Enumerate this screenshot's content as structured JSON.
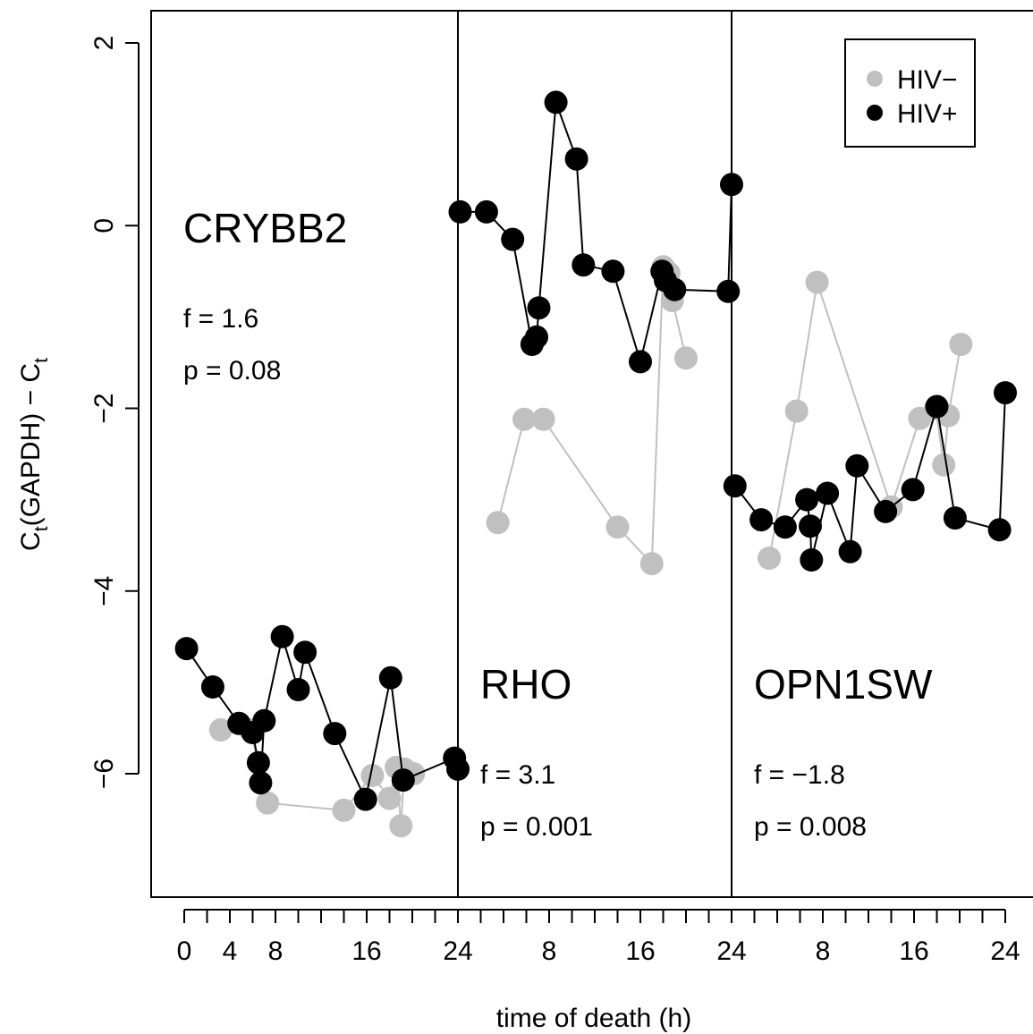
{
  "chart_data": {
    "type": "scatter",
    "xlabel": "time of death (h)",
    "ylabel_main": "C",
    "ylabel_sub1": "t",
    "ylabel_mid": "(GAPDH) − C",
    "ylabel_sub2": "t",
    "ylim": [
      -7.35,
      2.35
    ],
    "y_ticks": [
      2,
      0,
      -2,
      -4,
      -6
    ],
    "y_tick_labels": [
      "2",
      "0",
      "−2",
      "−4",
      "−6"
    ],
    "x_tick_labels": [
      "0",
      "4",
      "8",
      "16",
      "24",
      "8",
      "16",
      "24",
      "8",
      "16",
      "24"
    ],
    "legend": {
      "position": "top-right",
      "entries": [
        {
          "label": "HIV−",
          "color": "#c0c0c0"
        },
        {
          "label": "HIV+",
          "color": "#000000"
        }
      ]
    },
    "colors": {
      "HIV-": "#c0c0c0",
      "HIV+": "#000000"
    },
    "panels": [
      {
        "gene": "CRYBB2",
        "f": "f = 1.6",
        "p": "p = 0.08",
        "series": [
          {
            "name": "HIV+",
            "x": [
              0.2,
              2.5,
              4.8,
              6.0,
              6.5,
              6.7,
              7.0,
              8.6,
              10.0,
              10.6,
              13.2,
              15.9,
              18.1,
              19.2,
              23.7,
              24
            ],
            "y": [
              -4.63,
              -5.05,
              -5.45,
              -5.55,
              -5.88,
              -6.1,
              -5.42,
              -4.5,
              -5.08,
              -4.67,
              -5.56,
              -6.28,
              -4.95,
              -6.07,
              -5.83,
              -5.95
            ]
          },
          {
            "name": "HIV−",
            "x": [
              3.2,
              5.8,
              7.3,
              14.0,
              16.5,
              18.0,
              18.6,
              19.0,
              19.3,
              20.1
            ],
            "y": [
              -5.52,
              -5.52,
              -6.32,
              -6.4,
              -6.02,
              -6.27,
              -5.93,
              -6.57,
              -5.95,
              -6.0
            ]
          }
        ]
      },
      {
        "gene": "RHO",
        "f": "f = 3.1",
        "p": "p = 0.001",
        "series": [
          {
            "name": "HIV+",
            "x": [
              0.2,
              2.5,
              4.8,
              6.5,
              6.9,
              7.1,
              8.6,
              10.4,
              11.0,
              13.6,
              16.0,
              17.9,
              18.2,
              19.0,
              23.7,
              24
            ],
            "y": [
              0.15,
              0.15,
              -0.15,
              -1.3,
              -1.22,
              -0.9,
              1.35,
              0.73,
              -0.43,
              -0.5,
              -1.49,
              -0.5,
              -0.6,
              -0.7,
              -0.72,
              0.45
            ]
          },
          {
            "name": "HIV−",
            "x": [
              3.5,
              5.8,
              7.5,
              14.0,
              17.0,
              18.0,
              18.5,
              18.8,
              20.0
            ],
            "y": [
              -3.25,
              -2.12,
              -2.12,
              -3.3,
              -3.7,
              -0.45,
              -0.52,
              -0.82,
              -1.45
            ]
          }
        ]
      },
      {
        "gene": "OPN1SW",
        "f": "f = −1.8",
        "p": "p = 0.008",
        "series": [
          {
            "name": "HIV+",
            "x": [
              0.3,
              2.6,
              4.7,
              6.6,
              6.9,
              7.0,
              8.4,
              10.4,
              11.0,
              13.5,
              15.9,
              18.0,
              19.6,
              23.5,
              24
            ],
            "y": [
              -2.85,
              -3.22,
              -3.3,
              -3.0,
              -3.29,
              -3.66,
              -2.93,
              -3.57,
              -2.63,
              -3.13,
              -2.89,
              -1.98,
              -3.2,
              -3.33,
              -1.83
            ]
          },
          {
            "name": "HIV−",
            "x": [
              3.3,
              5.7,
              7.5,
              14.0,
              16.5,
              17.9,
              18.6,
              19.0,
              20.1
            ],
            "y": [
              -3.64,
              -2.03,
              -0.62,
              -3.08,
              -2.11,
              -2.0,
              -2.62,
              -2.08,
              -1.3
            ]
          }
        ]
      }
    ]
  }
}
